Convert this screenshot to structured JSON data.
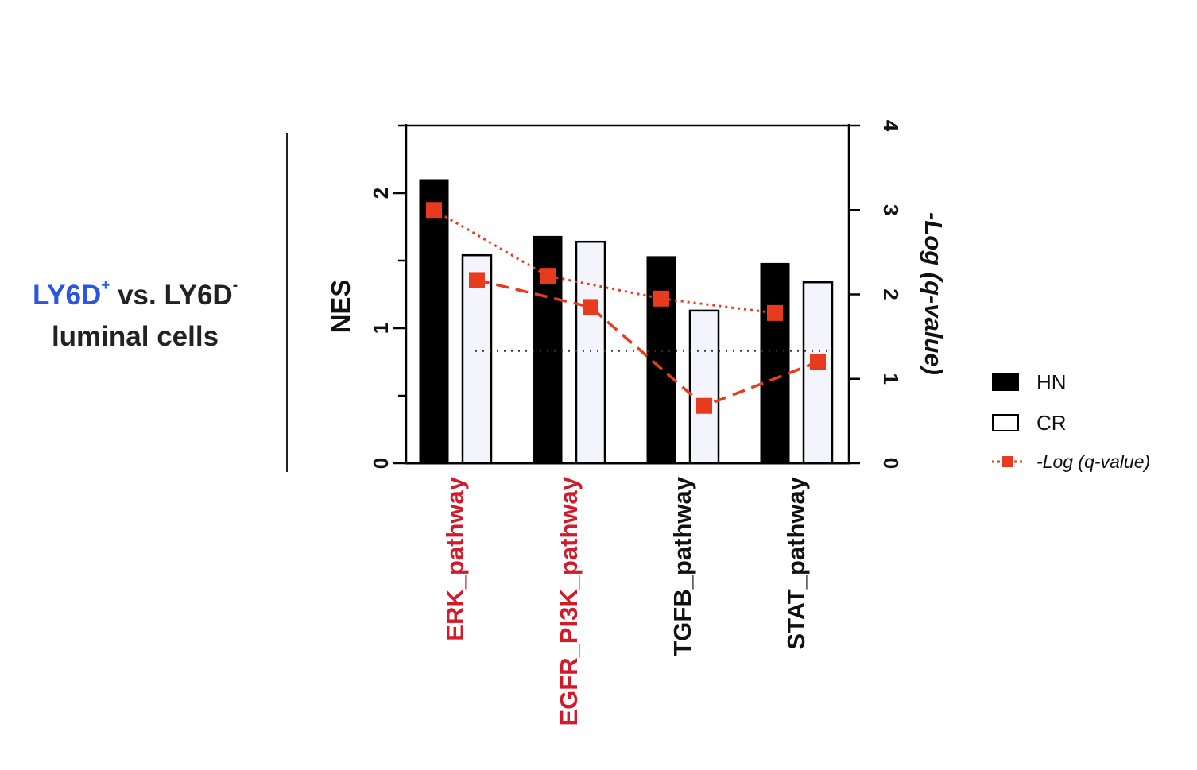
{
  "side_title": {
    "line1_highlight": "LY6D",
    "line1_sup_plus": "+",
    "line1_rest": " vs. LY6D",
    "line1_sup_minus": "-",
    "line2": "luminal cells"
  },
  "legend": {
    "hn_label": "HN",
    "cr_label": "CR",
    "q_label": "-Log (q-value)"
  },
  "colors": {
    "hn_fill": "#000000",
    "cr_fill": "#f4f4fc",
    "q_line": "#e83a1c",
    "highlight_text": "#d11a2a",
    "normal_text": "#111111",
    "title_blue": "#2a56e0"
  },
  "chart_data": {
    "type": "bar",
    "categories": [
      "ERK_pathway",
      "EGFR_PI3K_pathway",
      "TGFB_pathway",
      "STAT_pathway"
    ],
    "category_colors": [
      "#d11a2a",
      "#d11a2a",
      "#111111",
      "#111111"
    ],
    "series": [
      {
        "name": "HN",
        "axis": "left",
        "kind": "bar",
        "values": [
          2.1,
          1.68,
          1.53,
          1.48
        ]
      },
      {
        "name": "CR",
        "axis": "left",
        "kind": "bar",
        "values": [
          1.54,
          1.64,
          1.13,
          1.34
        ]
      }
    ],
    "line_series": {
      "name": "-Log (q-value)",
      "axis": "right",
      "points": [
        {
          "x": "ERK_pathway",
          "group": "HN",
          "value": 3.0
        },
        {
          "x": "ERK_pathway",
          "group": "CR",
          "value": 2.17
        },
        {
          "x": "EGFR_PI3K_pathway",
          "group": "HN",
          "value": 2.22
        },
        {
          "x": "EGFR_PI3K_pathway",
          "group": "CR",
          "value": 1.85
        },
        {
          "x": "TGFB_pathway",
          "group": "HN",
          "value": 1.95
        },
        {
          "x": "TGFB_pathway",
          "group": "CR",
          "value": 0.68
        },
        {
          "x": "STAT_pathway",
          "group": "HN",
          "value": 1.78
        },
        {
          "x": "STAT_pathway",
          "group": "CR",
          "value": 1.2
        }
      ]
    },
    "threshold": {
      "axis": "right",
      "value": 1.33,
      "style": "dotted"
    },
    "ylabel": "NES",
    "ylim": [
      0,
      2.5
    ],
    "yticks": [
      "0",
      "1",
      "2"
    ],
    "y2label": "-Log (q-value)",
    "y2lim": [
      0,
      4
    ],
    "y2ticks": [
      "0",
      "1",
      "2",
      "3",
      "4"
    ],
    "legend_position": "right"
  }
}
